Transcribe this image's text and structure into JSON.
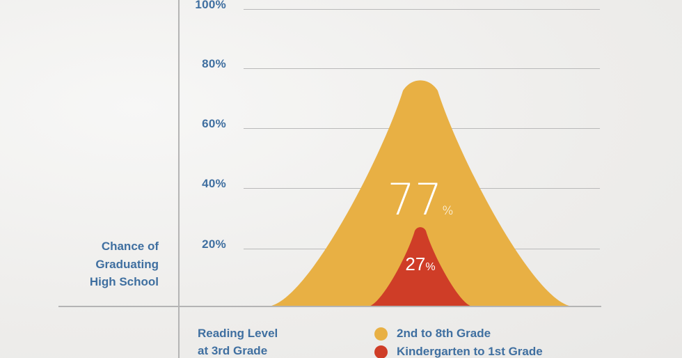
{
  "chart_data": {
    "type": "area",
    "title": "",
    "ylabel": "Chance of\nGraduating\nHigh School",
    "xlabel": "Reading Level\nat 3rd Grade",
    "ylim": [
      0,
      100
    ],
    "yticks": [
      "100%",
      "80%",
      "60%",
      "40%",
      "20%"
    ],
    "grid": true,
    "legend_position": "bottom",
    "series": [
      {
        "name": "2nd to 8th Grade",
        "value": 77,
        "value_label": "77",
        "unit": "%",
        "color": "#e8b044"
      },
      {
        "name": "Kindergarten to 1st Grade",
        "value": 27,
        "value_label": "27",
        "unit": "%",
        "color": "#cf3d27"
      }
    ]
  }
}
